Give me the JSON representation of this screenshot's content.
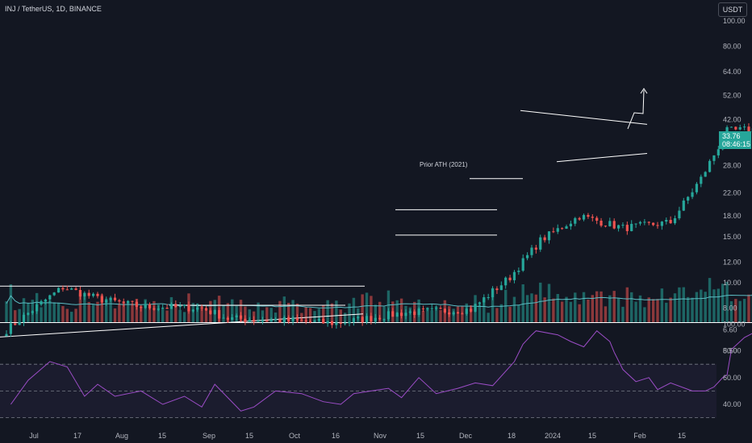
{
  "header": {
    "symbol": "INJ / TetherUS, 1D, BINANCE",
    "currency_button": "USDT"
  },
  "price_tag": {
    "price": "33.76",
    "countdown": "08:46:15"
  },
  "annotations": {
    "prior_ath": "Prior ATH (2021)"
  },
  "colors": {
    "background": "#131722",
    "up": "#26a69a",
    "down": "#ef5350",
    "rsi": "#9c4dc7",
    "ma": "#5bbbc2",
    "lines": "#ffffff"
  },
  "chart_data": [
    {
      "type": "candlestick",
      "title": "",
      "scale": "log",
      "y_ticks": [
        "100.00",
        "80.00",
        "64.00",
        "52.00",
        "42.00",
        "33.76",
        "28.00",
        "22.00",
        "18.00",
        "15.00",
        "12.00",
        "10.00",
        "8.00",
        "6.60",
        "5.50"
      ],
      "x_ticks": [
        "Jul",
        "17",
        "Aug",
        "15",
        "Sep",
        "15",
        "Oct",
        "16",
        "Nov",
        "15",
        "Dec",
        "18",
        "2024",
        "15",
        "Feb",
        "15"
      ],
      "last_price": 33.76,
      "key_levels": {
        "range_top_jul_oct": 9.7,
        "prior_ath_2021": 25.0,
        "nov_range_high": 19.0,
        "nov_range_low": 15.2
      },
      "close_path": [
        {
          "t": "Jul 1",
          "close": 6.6
        },
        {
          "t": "Jul 10",
          "close": 8.6
        },
        {
          "t": "Jul 14",
          "close": 9.6
        },
        {
          "t": "Jul 22",
          "close": 8.7
        },
        {
          "t": "Aug 1",
          "close": 8.1
        },
        {
          "t": "Aug 15",
          "close": 8.0
        },
        {
          "t": "Aug 21",
          "close": 7.3
        },
        {
          "t": "Sep 1",
          "close": 7.2
        },
        {
          "t": "Sep 15",
          "close": 7.0
        },
        {
          "t": "Oct 1",
          "close": 7.7
        },
        {
          "t": "Oct 16",
          "close": 7.9
        },
        {
          "t": "Oct 25",
          "close": 10.5
        },
        {
          "t": "Nov 1",
          "close": 14.5
        },
        {
          "t": "Nov 10",
          "close": 18.0
        },
        {
          "t": "Nov 20",
          "close": 16.2
        },
        {
          "t": "Dec 1",
          "close": 17.0
        },
        {
          "t": "Dec 8",
          "close": 25.0
        },
        {
          "t": "Dec 14",
          "close": 38.0
        },
        {
          "t": "Dec 25",
          "close": 39.0
        },
        {
          "t": "Jan 10",
          "close": 40.0
        },
        {
          "t": "Jan 20",
          "close": 33.76
        }
      ],
      "volume": {
        "moving_average": "shown"
      }
    },
    {
      "type": "line",
      "title": "",
      "y_ticks": [
        "100.00",
        "80.00",
        "60.00",
        "40.00"
      ],
      "bands": [
        30,
        50,
        70
      ],
      "series": [
        {
          "values": [
            [
              1,
              40
            ],
            [
              5,
              58
            ],
            [
              10,
              72
            ],
            [
              14,
              68
            ],
            [
              18,
              46
            ],
            [
              21,
              55
            ],
            [
              25,
              46
            ],
            [
              31,
              50
            ],
            [
              36,
              40
            ],
            [
              41,
              46
            ],
            [
              45,
              38
            ],
            [
              48,
              55
            ],
            [
              54,
              35
            ],
            [
              57,
              38
            ],
            [
              62,
              50
            ],
            [
              68,
              48
            ],
            [
              73,
              42
            ],
            [
              77,
              40
            ],
            [
              80,
              48
            ],
            [
              84,
              50
            ],
            [
              88,
              52
            ],
            [
              91,
              45
            ],
            [
              95,
              60
            ],
            [
              99,
              48
            ],
            [
              104,
              52
            ],
            [
              108,
              56
            ],
            [
              112,
              54
            ],
            [
              117,
              72
            ],
            [
              119,
              85
            ],
            [
              121,
              92
            ],
            [
              122,
              95
            ],
            [
              127,
              92
            ],
            [
              130,
              87
            ],
            [
              133,
              83
            ],
            [
              136,
              95
            ],
            [
              139,
              87
            ],
            [
              140,
              79
            ],
            [
              142,
              66
            ],
            [
              145,
              57
            ],
            [
              148,
              60
            ],
            [
              150,
              51
            ],
            [
              153,
              56
            ],
            [
              158,
              50
            ],
            [
              161,
              50
            ],
            [
              163,
              53
            ],
            [
              165,
              60
            ],
            [
              166,
              62
            ],
            [
              167,
              81
            ],
            [
              170,
              90
            ],
            [
              173,
              95
            ],
            [
              178,
              89
            ],
            [
              182,
              73
            ],
            [
              185,
              63
            ],
            [
              187,
              64
            ],
            [
              190,
              54
            ],
            [
              193,
              53
            ],
            [
              196,
              51
            ],
            [
              199,
              55
            ],
            [
              202,
              48
            ],
            [
              205,
              46
            ],
            [
              208,
              43
            ]
          ]
        }
      ]
    }
  ]
}
